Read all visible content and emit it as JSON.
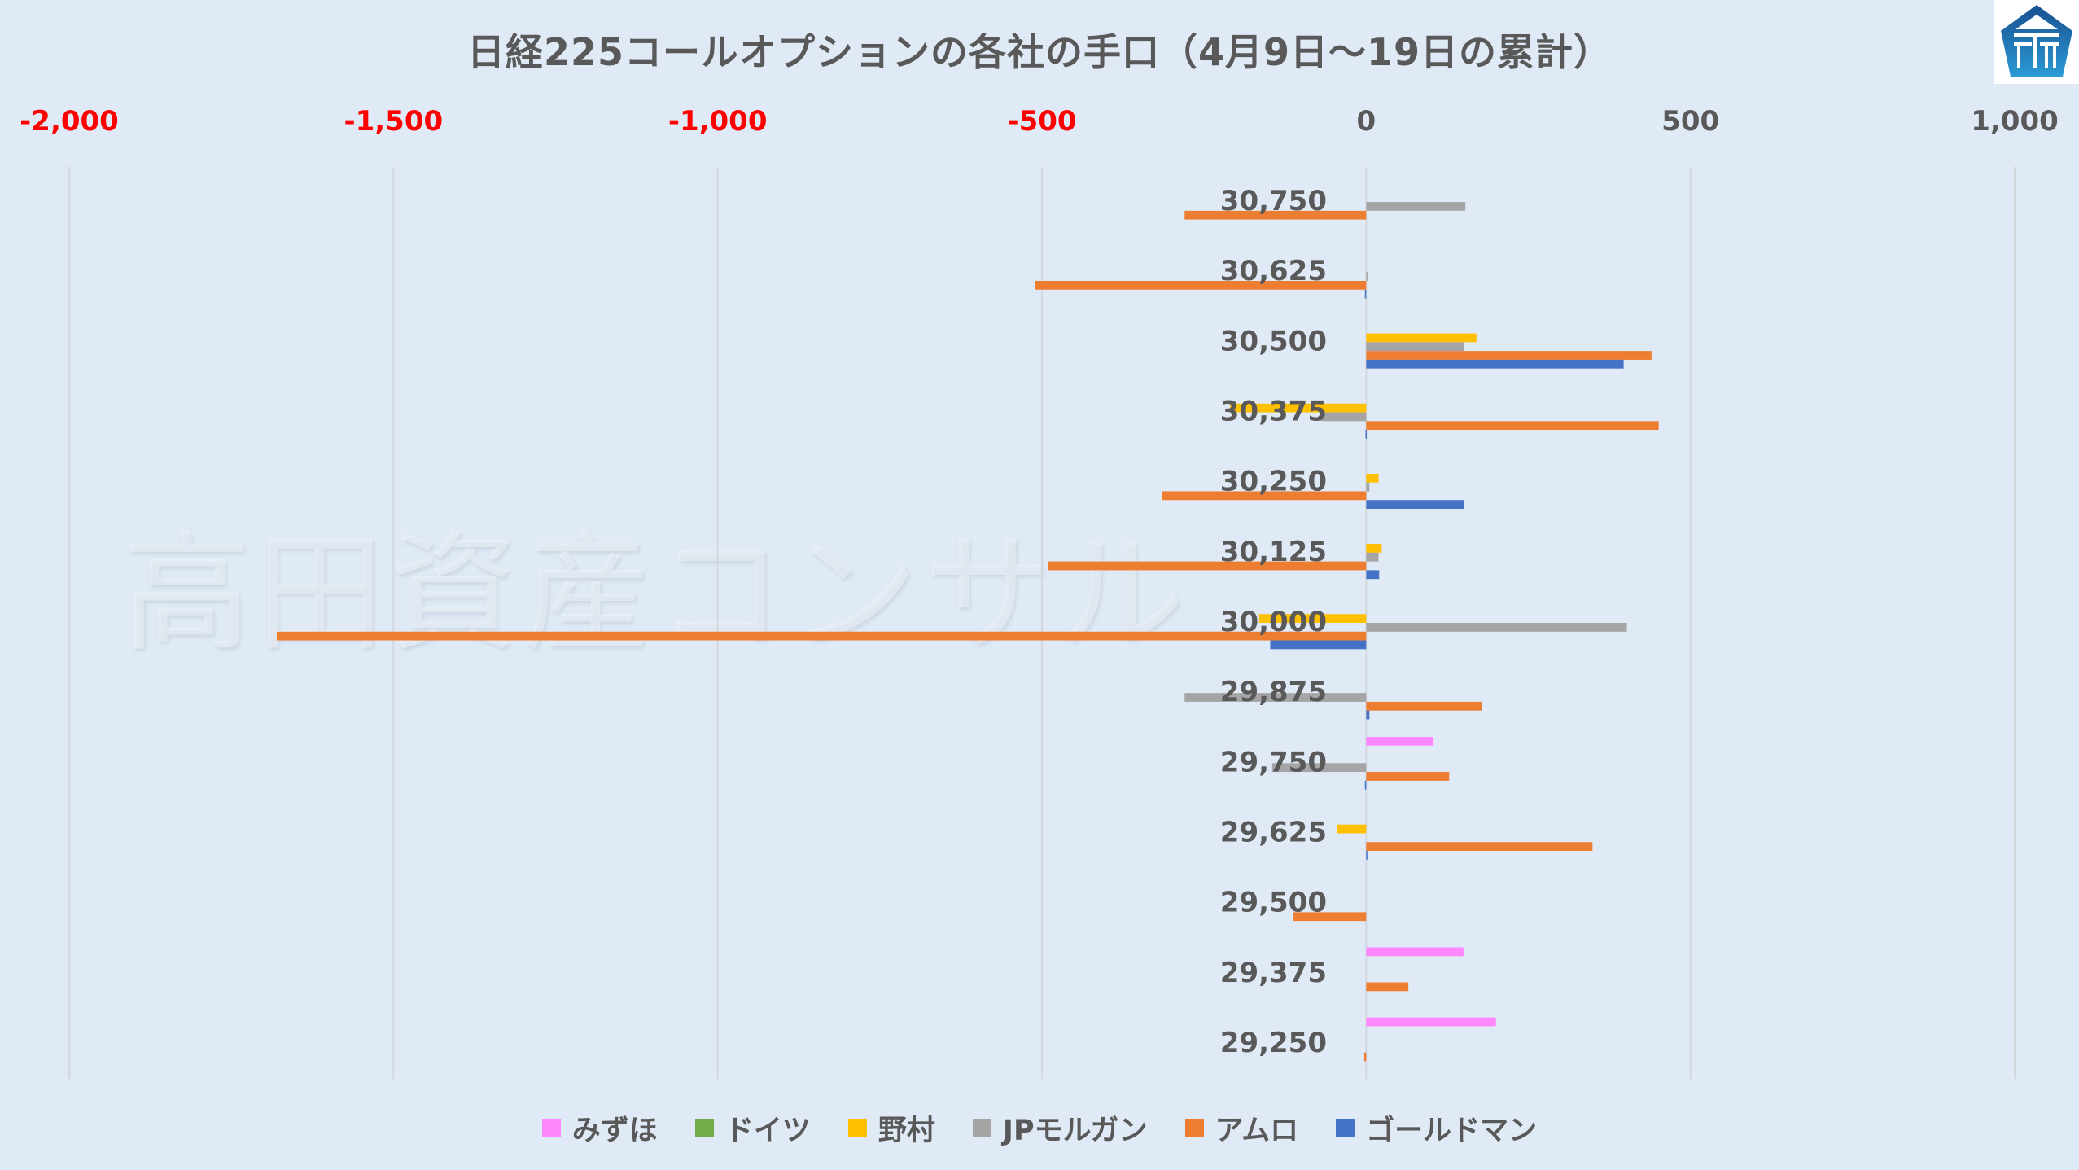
{
  "chart_data": {
    "type": "bar",
    "orientation": "horizontal",
    "title": "日経225コールオプションの各社の手口（4月9日〜19日の累計）",
    "xlabel": "",
    "ylabel": "",
    "xlim": [
      -2000,
      1000
    ],
    "x_ticks": [
      -2000,
      -1500,
      -1000,
      -500,
      0,
      500,
      1000
    ],
    "x_tick_labels": [
      "-2,000",
      "-1,500",
      "-1,000",
      "-500",
      "0",
      "500",
      "1,000"
    ],
    "x_axis_position": "top",
    "negative_tick_color": "#ff0000",
    "positive_tick_color": "#595959",
    "grid": true,
    "legend_position": "bottom",
    "categories": [
      "30,750",
      "30,625",
      "30,500",
      "30,375",
      "30,250",
      "30,125",
      "30,000",
      "29,875",
      "29,750",
      "29,625",
      "29,500",
      "29,375",
      "29,250"
    ],
    "series": [
      {
        "name": "みずほ",
        "color": "#ff88ff",
        "values": [
          0,
          0,
          0,
          0,
          0,
          0,
          0,
          0,
          104,
          0,
          0,
          150,
          200
        ]
      },
      {
        "name": "ドイツ",
        "color": "#70ad47",
        "values": [
          0,
          0,
          0,
          0,
          0,
          0,
          0,
          0,
          0,
          0,
          0,
          0,
          0
        ]
      },
      {
        "name": "野村",
        "color": "#ffc000",
        "values": [
          0,
          0,
          170,
          -210,
          19,
          24,
          -165,
          0,
          0,
          -45,
          0,
          0,
          0
        ]
      },
      {
        "name": "JPモルガン",
        "color": "#a5a5a5",
        "values": [
          153,
          2,
          151,
          -70,
          5,
          19,
          402,
          -280,
          -145,
          0,
          0,
          0,
          0
        ]
      },
      {
        "name": "アムロ",
        "color": "#ed7d31",
        "values": [
          -280,
          -510,
          440,
          451,
          -315,
          -490,
          -1680,
          178,
          128,
          349,
          -112,
          65,
          -3
        ]
      },
      {
        "name": "ゴールドマン",
        "color": "#4472c4",
        "values": [
          0,
          -2,
          397,
          -1,
          151,
          20,
          -148,
          5,
          -2,
          1,
          0,
          0,
          0
        ]
      }
    ]
  },
  "watermark": "高田資産コンサル",
  "logo": {
    "icon": "company-logo-pentagon-icon",
    "color": "#1a6bb0"
  }
}
